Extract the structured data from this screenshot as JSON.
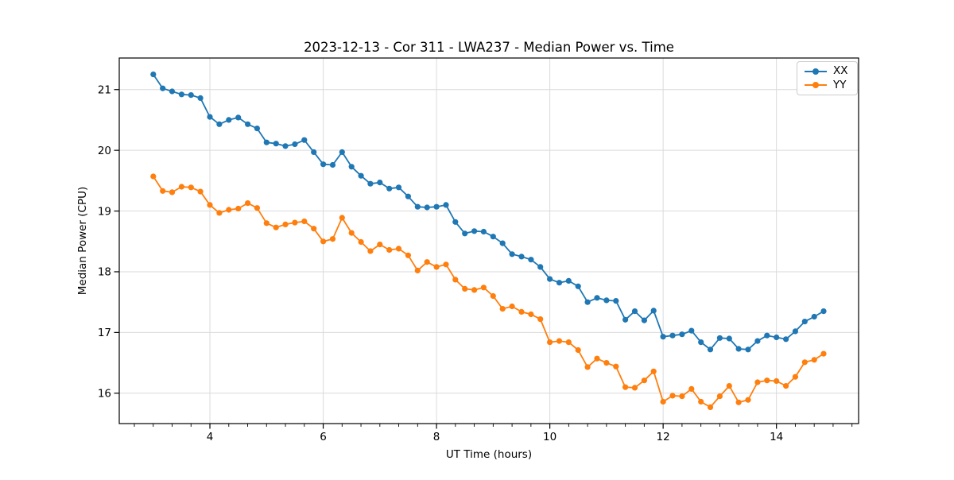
{
  "chart_data": {
    "type": "line",
    "title": "2023-12-13 - Cor 311 - LWA237 - Median Power vs. Time",
    "xlabel": "UT Time (hours)",
    "ylabel": "Median Power (CPU)",
    "xlim": [
      2.4,
      15.45
    ],
    "ylim": [
      15.5,
      21.52
    ],
    "x_ticks": [
      4,
      6,
      8,
      10,
      12,
      14
    ],
    "y_ticks": [
      16,
      17,
      18,
      19,
      20,
      21
    ],
    "x_minor_step": 0.3333,
    "grid": true,
    "grid_color": "#dadada",
    "legend_position": "upper right",
    "marker": "circle",
    "x": [
      3.0,
      3.167,
      3.333,
      3.5,
      3.667,
      3.833,
      4.0,
      4.167,
      4.333,
      4.5,
      4.667,
      4.833,
      5.0,
      5.167,
      5.333,
      5.5,
      5.667,
      5.833,
      6.0,
      6.167,
      6.333,
      6.5,
      6.667,
      6.833,
      7.0,
      7.167,
      7.333,
      7.5,
      7.667,
      7.833,
      8.0,
      8.167,
      8.333,
      8.5,
      8.667,
      8.833,
      9.0,
      9.167,
      9.333,
      9.5,
      9.667,
      9.833,
      10.0,
      10.167,
      10.333,
      10.5,
      10.667,
      10.833,
      11.0,
      11.167,
      11.333,
      11.5,
      11.667,
      11.833,
      12.0,
      12.167,
      12.333,
      12.5,
      12.667,
      12.833,
      13.0,
      13.167,
      13.333,
      13.5,
      13.667,
      13.833,
      14.0,
      14.167,
      14.333,
      14.5,
      14.667,
      14.833
    ],
    "series": [
      {
        "name": "XX",
        "color": "#1f77b4",
        "values": [
          21.25,
          21.02,
          20.97,
          20.92,
          20.91,
          20.86,
          20.55,
          20.43,
          20.5,
          20.54,
          20.43,
          20.36,
          20.13,
          20.11,
          20.07,
          20.1,
          20.17,
          19.97,
          19.77,
          19.76,
          19.97,
          19.73,
          19.58,
          19.45,
          19.47,
          19.37,
          19.39,
          19.24,
          19.07,
          19.06,
          19.07,
          19.1,
          18.82,
          18.63,
          18.67,
          18.66,
          18.58,
          18.47,
          18.29,
          18.25,
          18.2,
          18.08,
          17.88,
          17.82,
          17.85,
          17.76,
          17.5,
          17.57,
          17.53,
          17.52,
          17.21,
          17.35,
          17.2,
          17.36,
          16.93,
          16.95,
          16.97,
          17.03,
          16.84,
          16.72,
          16.91,
          16.9,
          16.73,
          16.72,
          16.86,
          16.95,
          16.92,
          16.89,
          17.02,
          17.18,
          17.26,
          17.35
        ]
      },
      {
        "name": "YY",
        "color": "#ff7f0e",
        "values": [
          19.57,
          19.33,
          19.31,
          19.4,
          19.39,
          19.32,
          19.1,
          18.97,
          19.02,
          19.04,
          19.13,
          19.05,
          18.8,
          18.73,
          18.78,
          18.81,
          18.83,
          18.71,
          18.5,
          18.54,
          18.89,
          18.64,
          18.49,
          18.34,
          18.45,
          18.36,
          18.38,
          18.27,
          18.02,
          18.16,
          18.08,
          18.12,
          17.87,
          17.72,
          17.7,
          17.74,
          17.6,
          17.39,
          17.43,
          17.34,
          17.3,
          17.22,
          16.84,
          16.86,
          16.84,
          16.71,
          16.43,
          16.57,
          16.5,
          16.44,
          16.1,
          16.09,
          16.21,
          16.36,
          15.86,
          15.96,
          15.95,
          16.07,
          15.86,
          15.77,
          15.95,
          16.12,
          15.85,
          15.89,
          16.18,
          16.21,
          16.2,
          16.12,
          16.27,
          16.51,
          16.55,
          16.65
        ]
      }
    ]
  }
}
